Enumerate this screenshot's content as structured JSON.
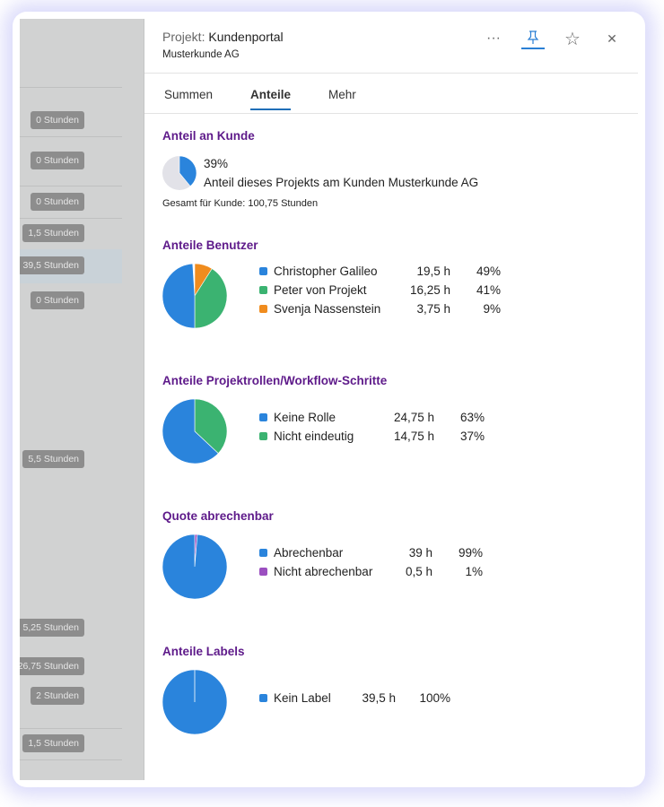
{
  "background_list": {
    "badges": [
      "0 Stunden",
      "0 Stunden",
      "0 Stunden",
      "1,5 Stunden",
      "39,5 Stunden",
      "0 Stunden",
      "5,5 Stunden",
      "5,25 Stunden",
      "26,75 Stunden",
      "2 Stunden",
      "1,5 Stunden"
    ]
  },
  "header": {
    "label": "Projekt:",
    "project": "Kundenportal",
    "customer": "Musterkunde AG",
    "icons": [
      "more-icon",
      "pin-icon",
      "star-icon",
      "close-icon"
    ],
    "more": "···",
    "close": "✕",
    "star": "☆"
  },
  "tabs": [
    {
      "label": "Summen"
    },
    {
      "label": "Anteile",
      "active": true
    },
    {
      "label": "Mehr"
    }
  ],
  "customer_share": {
    "title": "Anteil an Kunde",
    "percent": "39%",
    "value": 39,
    "description": "Anteil dieses Projekts am Kunden Musterkunde AG",
    "total": "Gesamt für Kunde: 100,75 Stunden"
  },
  "sections": [
    {
      "title": "Anteile Benutzer",
      "items": [
        {
          "name": "Christopher Galileo",
          "hours": "19,5 h",
          "pct": "49%",
          "value": 49,
          "color": "#2a84dc"
        },
        {
          "name": "Peter von Projekt",
          "hours": "16,25 h",
          "pct": "41%",
          "value": 41,
          "color": "#3bb371"
        },
        {
          "name": "Svenja Nassenstein",
          "hours": "3,75 h",
          "pct": "9%",
          "value": 9,
          "color": "#f08c1e"
        }
      ]
    },
    {
      "title": "Anteile Projektrollen/Workflow-Schritte",
      "items": [
        {
          "name": "Keine Rolle",
          "hours": "24,75 h",
          "pct": "63%",
          "value": 63,
          "color": "#2a84dc"
        },
        {
          "name": "Nicht eindeutig",
          "hours": "14,75 h",
          "pct": "37%",
          "value": 37,
          "color": "#3bb371"
        }
      ]
    },
    {
      "title": "Quote abrechenbar",
      "items": [
        {
          "name": "Abrechenbar",
          "hours": "39 h",
          "pct": "99%",
          "value": 98.7,
          "color": "#2a84dc"
        },
        {
          "name": "Nicht abrechenbar",
          "hours": "0,5 h",
          "pct": "1%",
          "value": 1.3,
          "color": "#9b4fc0"
        }
      ]
    },
    {
      "title": "Anteile Labels",
      "items": [
        {
          "name": "Kein Label",
          "hours": "39,5 h",
          "pct": "100%",
          "value": 100,
          "color": "#2a84dc"
        }
      ]
    }
  ]
}
